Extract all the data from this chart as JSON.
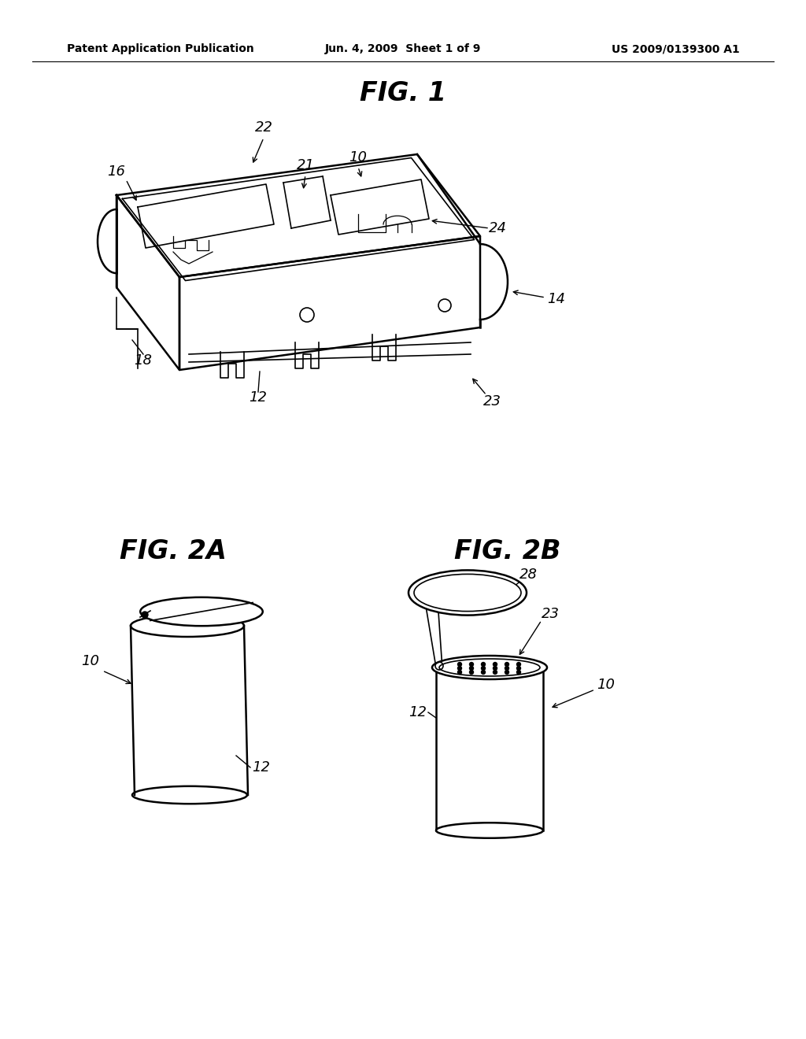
{
  "background_color": "#ffffff",
  "header_left": "Patent Application Publication",
  "header_mid": "Jun. 4, 2009  Sheet 1 of 9",
  "header_right": "US 2009/0139300 A1",
  "header_fontsize": 10,
  "fig1_title": "FIG. 1",
  "fig2a_title": "FIG. 2A",
  "fig2b_title": "FIG. 2B",
  "title_fontsize": 24,
  "label_fontsize": 13
}
